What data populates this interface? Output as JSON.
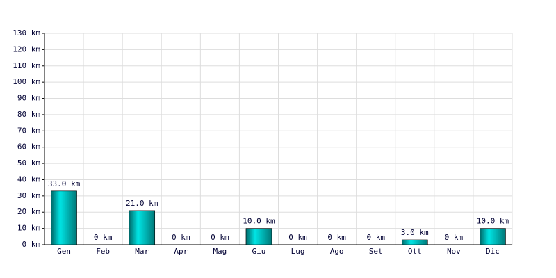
{
  "chart_data": {
    "type": "bar",
    "categories": [
      "Gen",
      "Feb",
      "Mar",
      "Apr",
      "Mag",
      "Giu",
      "Lug",
      "Ago",
      "Set",
      "Ott",
      "Nov",
      "Dic"
    ],
    "values": [
      33,
      0,
      21,
      0,
      0,
      10,
      0,
      0,
      0,
      3,
      0,
      10
    ],
    "value_labels": [
      "33.0 km",
      "0 km",
      "21.0 km",
      "0 km",
      "0 km",
      "10.0 km",
      "0 km",
      "0 km",
      "0 km",
      "3.0 km",
      "0 km",
      "10.0 km"
    ],
    "color": "#00e5e5",
    "ylim": [
      0,
      130
    ],
    "yticks": [
      {
        "value": 0,
        "label": "0 km"
      },
      {
        "value": 10,
        "label": "10 km"
      },
      {
        "value": 20,
        "label": "20 km"
      },
      {
        "value": 30,
        "label": "30 km"
      },
      {
        "value": 40,
        "label": "40 km"
      },
      {
        "value": 50,
        "label": "50 km"
      },
      {
        "value": 60,
        "label": "60 km"
      },
      {
        "value": 70,
        "label": "70 km"
      },
      {
        "value": 80,
        "label": "80 km"
      },
      {
        "value": 90,
        "label": "90 km"
      },
      {
        "value": 100,
        "label": "100 km"
      },
      {
        "value": 110,
        "label": "110 km"
      },
      {
        "value": 120,
        "label": "120 km"
      },
      {
        "value": 130,
        "label": "130 km"
      }
    ],
    "grid": true
  }
}
